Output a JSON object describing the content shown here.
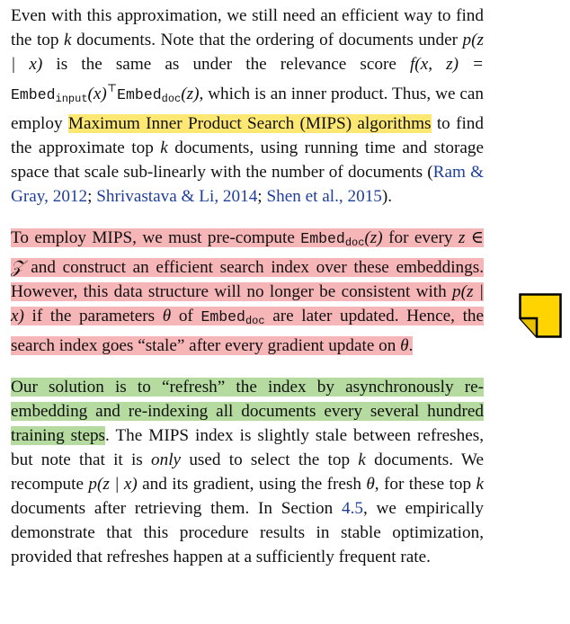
{
  "p1": {
    "a": "Even with this approximation, we still need an efficient way to find the top ",
    "k1": "k",
    "b": " documents. Note that the ordering of documents under ",
    "pz": "p(z | x)",
    "c": " is the same as under the relevance score ",
    "fxz": "f(x, z) = ",
    "embed_input": "Embed",
    "embed_input_sub": "input",
    "x_arg": "(x)",
    "transpose": "⊤",
    "embed_doc": "Embed",
    "embed_doc_sub": "doc",
    "z_arg": "(z)",
    "d": ", which is an inner product. Thus, we can employ ",
    "mips_hl": "Maximum Inner Product Search (MIPS) algorithms",
    "e": " to find the approximate top ",
    "k2": "k",
    "f": " documents, using running time and storage space that scale sub-linearly with the number of documents (",
    "cite1": "Ram & Gray",
    "cite1_year": "2012",
    "sep1": "; ",
    "cite2": "Shrivastava & Li",
    "cite2_year": "2014",
    "sep2": "; ",
    "cite3": "Shen et al.",
    "cite3_year": "2015",
    "end": ")."
  },
  "p2": {
    "a": "To employ MIPS, we must pre-compute ",
    "embed": "Embed",
    "embed_sub": "doc",
    "z_arg": "(z)",
    "b": " for every ",
    "z_in": "z ∈ 𝒵",
    "c": " and construct an efficient search index over these embeddings. However, this data structure will no longer be consistent with ",
    "pz": "p(z | x)",
    "d": " if the parameters ",
    "theta1": "θ",
    "e": " of ",
    "embed2": "Embed",
    "embed2_sub": "doc",
    "f": " are later updated. Hence, the search index goes “stale” after every gradient update on ",
    "theta2": "θ",
    "end": "."
  },
  "p3": {
    "hl": "Our solution is to “refresh” the index by asynchronously re-embedding and re-indexing all documents every several hundred training steps",
    "a": ". The MIPS index is slightly stale between refreshes, but note that it is ",
    "only": "only",
    "b": " used to select the top ",
    "k1": "k",
    "c": " documents. We recompute ",
    "pz": "p(z | x)",
    "d": " and its gradient, using the fresh ",
    "theta": "θ",
    "e": ", for these top ",
    "k2": "k",
    "f": " documents after retrieving them. In Section ",
    "section": "4.5",
    "g": ", we empirically demonstrate that this procedure results in stable optimization, provided that refreshes happen at a sufficiently frequent rate."
  },
  "colors": {
    "yellow_highlight": "#fde874",
    "pink_highlight": "#f6b6b8",
    "green_highlight": "#b5dba0",
    "citation_link": "#1f3f9a",
    "note_icon_fill": "#ffd400"
  },
  "icons": {
    "annotation": "sticky-note-icon"
  }
}
